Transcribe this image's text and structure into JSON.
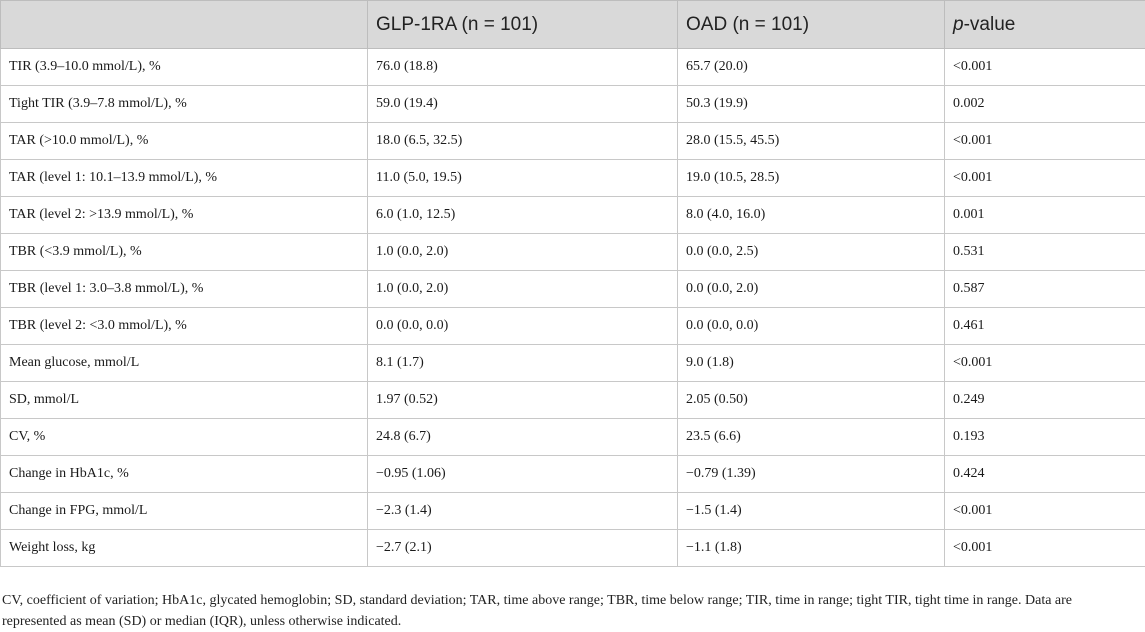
{
  "table": {
    "columns": [
      "",
      "GLP-1RA (n = 101)",
      "OAD (n = 101)",
      "p",
      "-value"
    ],
    "header": {
      "col1": "GLP-1RA (n = 101)",
      "col2": "OAD (n = 101)",
      "col3_italic": "p",
      "col3_rest": "-value"
    },
    "rows": [
      {
        "label": "TIR (3.9–10.0 mmol/L), %",
        "glp": "76.0 (18.8)",
        "oad": "65.7 (20.0)",
        "p": "<0.001"
      },
      {
        "label": "Tight TIR (3.9–7.8 mmol/L), %",
        "glp": "59.0 (19.4)",
        "oad": "50.3 (19.9)",
        "p": "0.002"
      },
      {
        "label": "TAR (>10.0 mmol/L), %",
        "glp": "18.0 (6.5, 32.5)",
        "oad": "28.0 (15.5, 45.5)",
        "p": "<0.001"
      },
      {
        "label": "TAR (level 1: 10.1–13.9 mmol/L), %",
        "glp": "11.0 (5.0, 19.5)",
        "oad": "19.0 (10.5, 28.5)",
        "p": "<0.001"
      },
      {
        "label": "TAR (level 2: >13.9 mmol/L), %",
        "glp": "6.0 (1.0, 12.5)",
        "oad": "8.0 (4.0, 16.0)",
        "p": "0.001"
      },
      {
        "label": "TBR (<3.9 mmol/L), %",
        "glp": "1.0 (0.0, 2.0)",
        "oad": "0.0 (0.0, 2.5)",
        "p": "0.531"
      },
      {
        "label": "TBR (level 1: 3.0–3.8 mmol/L), %",
        "glp": "1.0 (0.0, 2.0)",
        "oad": "0.0 (0.0, 2.0)",
        "p": "0.587"
      },
      {
        "label": "TBR (level 2: <3.0 mmol/L), %",
        "glp": "0.0 (0.0, 0.0)",
        "oad": "0.0 (0.0, 0.0)",
        "p": "0.461"
      },
      {
        "label": "Mean glucose, mmol/L",
        "glp": "8.1 (1.7)",
        "oad": "9.0 (1.8)",
        "p": "<0.001"
      },
      {
        "label": "SD, mmol/L",
        "glp": "1.97 (0.52)",
        "oad": "2.05 (0.50)",
        "p": "0.249"
      },
      {
        "label": "CV, %",
        "glp": "24.8 (6.7)",
        "oad": "23.5 (6.6)",
        "p": "0.193"
      },
      {
        "label": "Change in HbA1c, %",
        "glp": "−0.95 (1.06)",
        "oad": "−0.79 (1.39)",
        "p": "0.424"
      },
      {
        "label": "Change in FPG, mmol/L",
        "glp": "−2.3 (1.4)",
        "oad": "−1.5 (1.4)",
        "p": "<0.001"
      },
      {
        "label": "Weight loss, kg",
        "glp": "−2.7 (2.1)",
        "oad": "−1.1 (1.8)",
        "p": "<0.001"
      }
    ]
  },
  "footnote": "CV, coefficient of variation; HbA1c, glycated hemoglobin; SD, standard deviation; TAR, time above range; TBR, time below range; TIR, time in range; tight TIR, tight time in range. Data are represented as mean (SD) or median (IQR), unless otherwise indicated."
}
